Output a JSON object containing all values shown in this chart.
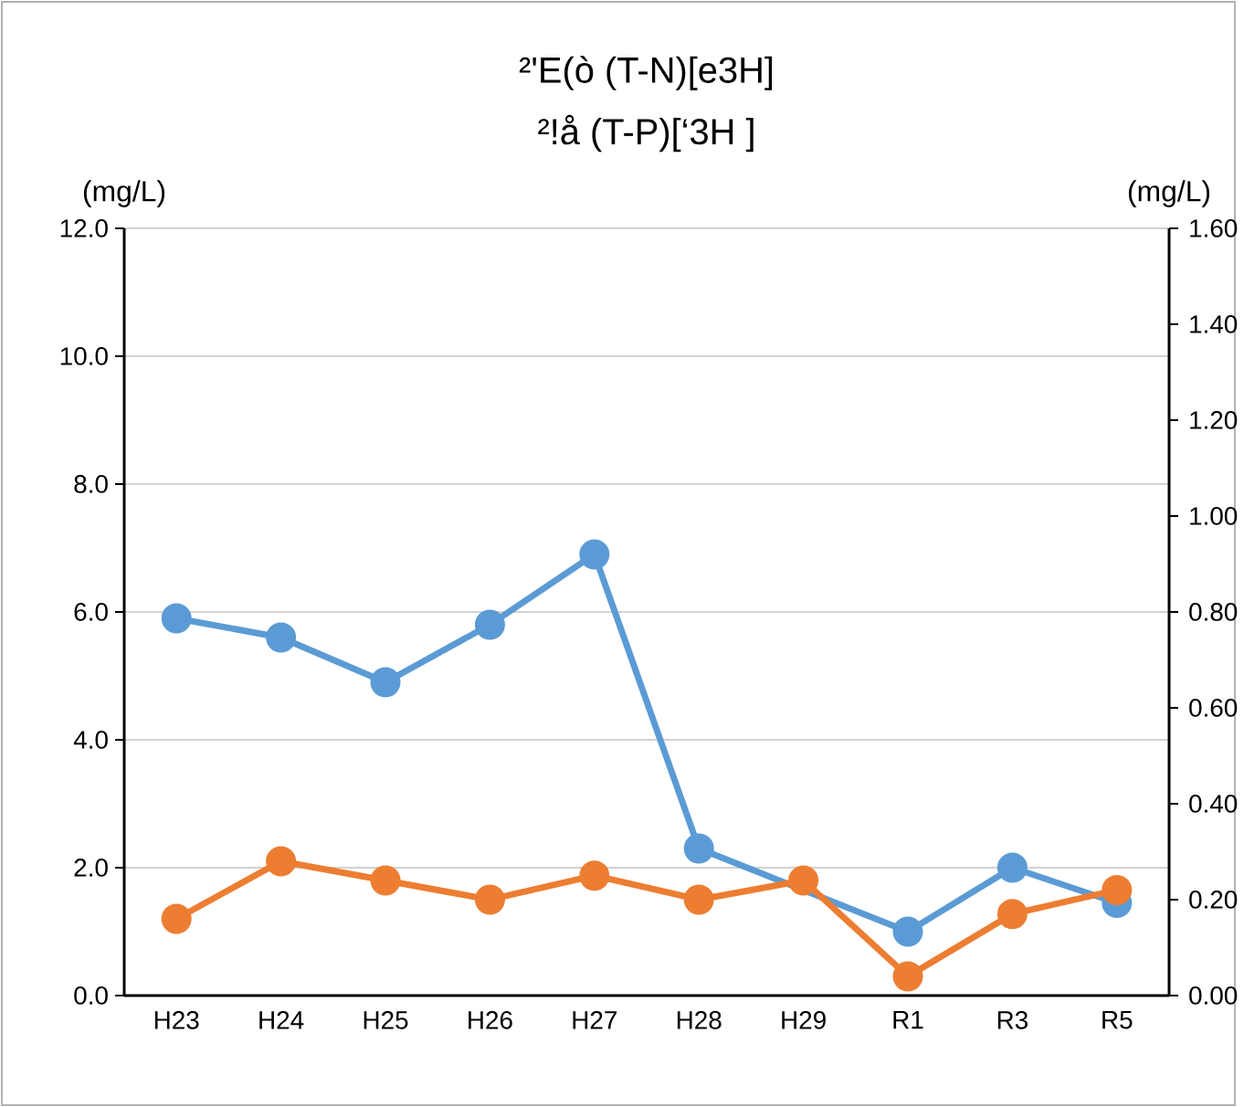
{
  "chart_data": {
    "type": "line",
    "title": "²'E(ò  (T-N)[e3H]",
    "subtitle": "²!å  (T-P)[‘3H ]",
    "ylabel": "(mg/L)",
    "y2label": "(mg/L)",
    "categories": [
      "H23",
      "H24",
      "H25",
      "H26",
      "H27",
      "H28",
      "H29",
      "R1",
      "R3",
      "R5"
    ],
    "series": [
      {
        "color": "#5b9bd5",
        "values": [
          5.9,
          5.6,
          4.9,
          5.8,
          6.9,
          2.3,
          null,
          1.0,
          2.0,
          1.45
        ]
      },
      {
        "color": "#ed7d31",
        "axis": "y2",
        "values": [
          0.16,
          0.28,
          0.24,
          0.2,
          0.25,
          0.2,
          0.24,
          0.04,
          0.17,
          0.22
        ]
      }
    ],
    "ylim": [
      0,
      12
    ],
    "yticks": [
      {
        "value": 0,
        "label": "0.0"
      },
      {
        "value": 2,
        "label": "2.0"
      },
      {
        "value": 4,
        "label": "4.0"
      },
      {
        "value": 6,
        "label": "6.0"
      },
      {
        "value": 8,
        "label": "8.0"
      },
      {
        "value": 10,
        "label": "10.0"
      },
      {
        "value": 12,
        "label": "12.0"
      }
    ],
    "y2lim": [
      0,
      1.6
    ],
    "y2ticks": [
      {
        "value": 0,
        "label": "0.00"
      },
      {
        "value": 0.2,
        "label": "0.20"
      },
      {
        "value": 0.4,
        "label": "0.40"
      },
      {
        "value": 0.6,
        "label": "0.60"
      },
      {
        "value": 0.8,
        "label": "0.80"
      },
      {
        "value": 1.0,
        "label": "1.00"
      },
      {
        "value": 1.2,
        "label": "1.20"
      },
      {
        "value": 1.4,
        "label": "1.40"
      },
      {
        "value": 1.6,
        "label": "1.60"
      }
    ],
    "grid": "y",
    "marker": "circle",
    "line_style": "solid"
  }
}
